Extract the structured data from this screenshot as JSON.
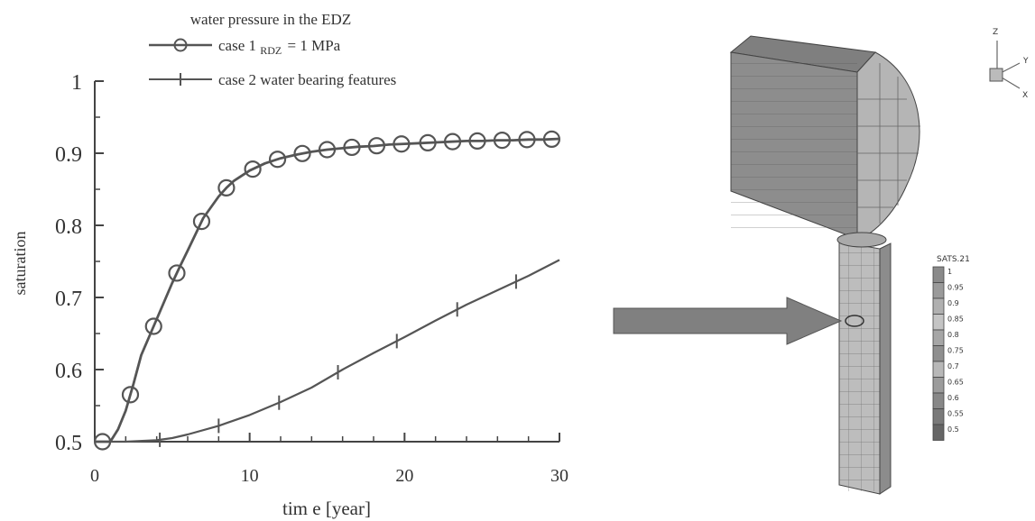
{
  "chart_data": {
    "type": "line",
    "title": "water pressure in the EDZ",
    "xlabel": "tim e [year]",
    "ylabel": "saturation",
    "xlim": [
      0,
      30
    ],
    "ylim": [
      0.5,
      1.0
    ],
    "xticks": [
      "0",
      "10",
      "20",
      "30"
    ],
    "yticks": [
      "0.5",
      "0.6",
      "0.7",
      "0.8",
      "0.9",
      "1"
    ],
    "grid": false,
    "legend_position": "top",
    "series": [
      {
        "name": "case 1 p_RDZ = 1 MPa",
        "name_prefix": "case 1 ",
        "name_sub": "RDZ",
        "name_suffix": "= 1 MPa",
        "marker": "circle",
        "x": [
          0,
          0.5,
          1,
          1.5,
          2,
          2.5,
          3,
          3.5,
          4,
          5,
          5.5,
          6,
          7,
          8,
          8.5,
          9,
          10,
          11,
          12,
          13,
          14,
          15,
          16,
          17,
          18,
          19,
          20,
          21,
          22,
          23,
          24,
          25,
          26,
          27,
          28,
          29,
          30
        ],
        "y": [
          0.5,
          0.5,
          0.5,
          0.517,
          0.543,
          0.58,
          0.62,
          0.645,
          0.67,
          0.72,
          0.743,
          0.765,
          0.81,
          0.84,
          0.852,
          0.862,
          0.876,
          0.886,
          0.893,
          0.898,
          0.902,
          0.905,
          0.907,
          0.909,
          0.91,
          0.912,
          0.913,
          0.914,
          0.915,
          0.916,
          0.917,
          0.917,
          0.918,
          0.918,
          0.919,
          0.919,
          0.92
        ],
        "marker_x": [
          0.5,
          2.3,
          3.8,
          5.3,
          6.9,
          8.5,
          10.2,
          11.8,
          13.4,
          15.0,
          16.6,
          18.2,
          19.8,
          21.5,
          23.1,
          24.7,
          26.3,
          27.9,
          29.5
        ]
      },
      {
        "name": "case 2 water bearing features",
        "marker": "plus",
        "x": [
          0,
          2,
          4,
          5,
          6,
          8,
          10,
          12,
          14,
          16,
          18,
          20,
          22,
          24,
          26,
          28,
          30
        ],
        "y": [
          0.5,
          0.5,
          0.502,
          0.505,
          0.51,
          0.522,
          0.537,
          0.555,
          0.575,
          0.6,
          0.623,
          0.645,
          0.668,
          0.69,
          0.71,
          0.73,
          0.752
        ],
        "marker_x": [
          4.2,
          8.0,
          11.9,
          15.7,
          19.5,
          23.4,
          27.2
        ]
      }
    ]
  },
  "model_figure": {
    "axis_labels": {
      "z": "Z",
      "y": "Y",
      "x": "X"
    },
    "legend_title": "SATS.21",
    "legend_values": [
      "1",
      "0.95",
      "0.9",
      "0.85",
      "0.8",
      "0.75",
      "0.7",
      "0.65",
      "0.6",
      "0.55",
      "0.5"
    ],
    "legend_colors": [
      "#8a8a8a",
      "#9a9a9a",
      "#b0b0b0",
      "#c4c4c4",
      "#a6a6a6",
      "#8f8f8f",
      "#b8b8b8",
      "#9c9c9c",
      "#888888",
      "#7a7a7a",
      "#666666"
    ],
    "arrow_color": "#808080",
    "mesh_colors": {
      "drift_top": "#7f7f7f",
      "drift_side": "#9c9c9c",
      "drift_end": "#b5b5b5",
      "shaft": "#bdbdbd",
      "shaft_side": "#8c8c8c"
    }
  }
}
